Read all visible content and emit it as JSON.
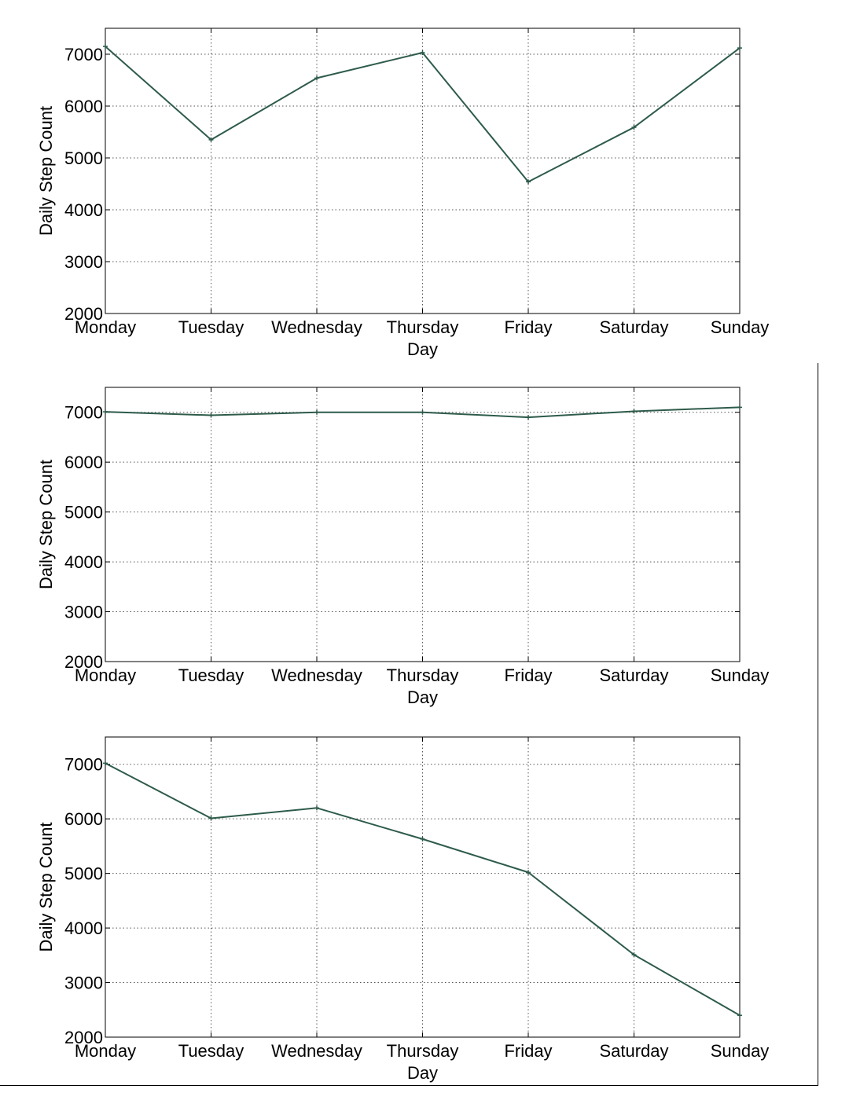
{
  "style": {
    "line_color": "#2e5b4a",
    "grid_color": "#555555",
    "axis_color": "#000000"
  },
  "chart_data": [
    {
      "type": "line",
      "title": "",
      "xlabel": "Day",
      "ylabel": "Daily Step Count",
      "categories": [
        "Monday",
        "Tuesday",
        "Wednesday",
        "Thursday",
        "Friday",
        "Saturday",
        "Sunday"
      ],
      "yticks": [
        "2000",
        "3000",
        "4000",
        "5000",
        "6000",
        "7000"
      ],
      "ylim": [
        2000,
        7500
      ],
      "grid": true,
      "series": [
        {
          "values": [
            7150,
            5350,
            6540,
            7030,
            4540,
            5590,
            7120
          ]
        }
      ]
    },
    {
      "type": "line",
      "title": "",
      "xlabel": "Day",
      "ylabel": "Daily Step Count",
      "categories": [
        "Monday",
        "Tuesday",
        "Wednesday",
        "Thursday",
        "Friday",
        "Saturday",
        "Sunday"
      ],
      "yticks": [
        "2000",
        "3000",
        "4000",
        "5000",
        "6000",
        "7000"
      ],
      "ylim": [
        2000,
        7500
      ],
      "grid": true,
      "series": [
        {
          "values": [
            7010,
            6940,
            7000,
            7000,
            6900,
            7020,
            7100
          ]
        }
      ]
    },
    {
      "type": "line",
      "title": "",
      "xlabel": "Day",
      "ylabel": "Daily Step Count",
      "categories": [
        "Monday",
        "Tuesday",
        "Wednesday",
        "Thursday",
        "Friday",
        "Saturday",
        "Sunday"
      ],
      "yticks": [
        "2000",
        "3000",
        "4000",
        "5000",
        "6000",
        "7000"
      ],
      "ylim": [
        2000,
        7500
      ],
      "grid": true,
      "series": [
        {
          "values": [
            7020,
            6010,
            6200,
            5630,
            5020,
            3510,
            2400
          ]
        }
      ]
    }
  ]
}
